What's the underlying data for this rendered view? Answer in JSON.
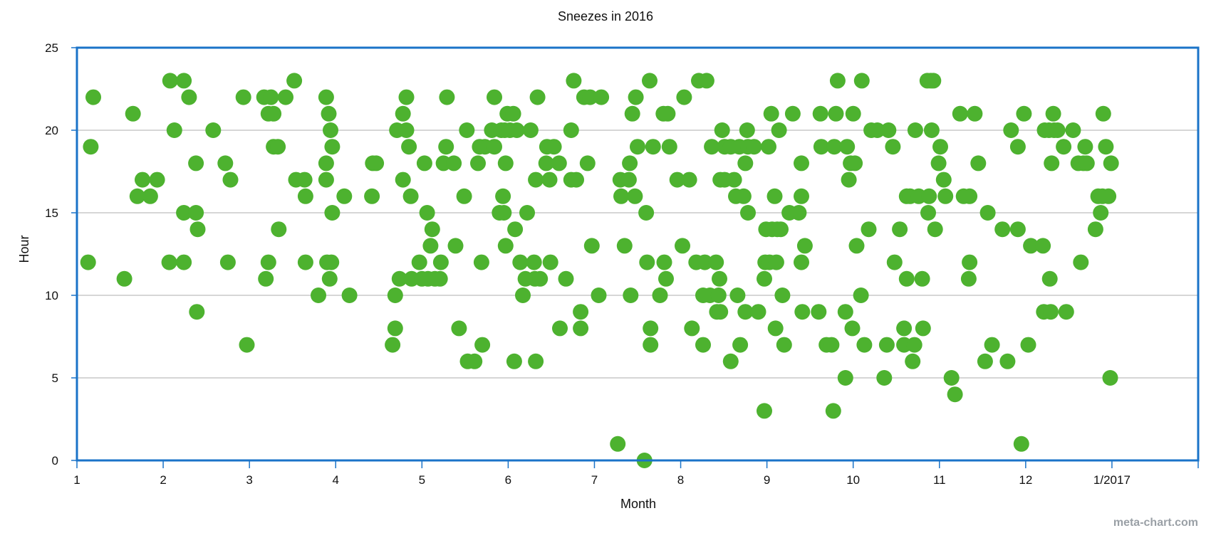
{
  "chart_data": {
    "type": "scatter",
    "title": "Sneezes in 2016",
    "xlabel": "Month",
    "ylabel": "Hour",
    "xlim": [
      1,
      14
    ],
    "ylim": [
      0,
      25
    ],
    "x_ticks": [
      {
        "value": 1,
        "label": "1"
      },
      {
        "value": 2,
        "label": "2"
      },
      {
        "value": 3,
        "label": "3"
      },
      {
        "value": 4,
        "label": "4"
      },
      {
        "value": 5,
        "label": "5"
      },
      {
        "value": 6,
        "label": "6"
      },
      {
        "value": 7,
        "label": "7"
      },
      {
        "value": 8,
        "label": "8"
      },
      {
        "value": 9,
        "label": "9"
      },
      {
        "value": 10,
        "label": "10"
      },
      {
        "value": 11,
        "label": "11"
      },
      {
        "value": 12,
        "label": "12"
      },
      {
        "value": 13,
        "label": "1/2017"
      }
    ],
    "y_ticks": [
      0,
      5,
      10,
      15,
      20,
      25
    ],
    "grid": true,
    "colors": {
      "point": "#4db22f",
      "frame": "#1a73c8",
      "grid": "#c8c8c8"
    },
    "points": [
      [
        1.13,
        12
      ],
      [
        1.16,
        19
      ],
      [
        1.19,
        22
      ],
      [
        1.55,
        11
      ],
      [
        1.65,
        21
      ],
      [
        1.7,
        16
      ],
      [
        1.76,
        17
      ],
      [
        1.85,
        16
      ],
      [
        1.93,
        17
      ],
      [
        2.07,
        12
      ],
      [
        2.08,
        23
      ],
      [
        2.13,
        20
      ],
      [
        2.24,
        23
      ],
      [
        2.24,
        15
      ],
      [
        2.24,
        12
      ],
      [
        2.3,
        22
      ],
      [
        2.38,
        18
      ],
      [
        2.38,
        15
      ],
      [
        2.39,
        9
      ],
      [
        2.4,
        14
      ],
      [
        2.58,
        20
      ],
      [
        2.72,
        18
      ],
      [
        2.75,
        12
      ],
      [
        2.78,
        17
      ],
      [
        2.93,
        22
      ],
      [
        2.97,
        7
      ],
      [
        3.17,
        22
      ],
      [
        3.19,
        11
      ],
      [
        3.22,
        12
      ],
      [
        3.22,
        21
      ],
      [
        3.25,
        22
      ],
      [
        3.28,
        19
      ],
      [
        3.28,
        21
      ],
      [
        3.33,
        19
      ],
      [
        3.34,
        14
      ],
      [
        3.42,
        22
      ],
      [
        3.52,
        23
      ],
      [
        3.54,
        17
      ],
      [
        3.64,
        17
      ],
      [
        3.65,
        16
      ],
      [
        3.65,
        12
      ],
      [
        3.8,
        10
      ],
      [
        3.89,
        22
      ],
      [
        3.89,
        18
      ],
      [
        3.89,
        17
      ],
      [
        3.9,
        12
      ],
      [
        3.92,
        21
      ],
      [
        3.93,
        11
      ],
      [
        3.94,
        20
      ],
      [
        3.95,
        12
      ],
      [
        3.96,
        19
      ],
      [
        3.96,
        15
      ],
      [
        4.1,
        16
      ],
      [
        4.16,
        10
      ],
      [
        4.42,
        16
      ],
      [
        4.43,
        18
      ],
      [
        4.47,
        18
      ],
      [
        4.66,
        7
      ],
      [
        4.69,
        10
      ],
      [
        4.69,
        8
      ],
      [
        4.71,
        20
      ],
      [
        4.74,
        11
      ],
      [
        4.78,
        21
      ],
      [
        4.78,
        17
      ],
      [
        4.82,
        22
      ],
      [
        4.82,
        20
      ],
      [
        4.85,
        19
      ],
      [
        4.87,
        16
      ],
      [
        4.88,
        11
      ],
      [
        4.97,
        12
      ],
      [
        5.0,
        11
      ],
      [
        5.03,
        18
      ],
      [
        5.06,
        15
      ],
      [
        5.07,
        11
      ],
      [
        5.1,
        13
      ],
      [
        5.12,
        14
      ],
      [
        5.15,
        11
      ],
      [
        5.21,
        11
      ],
      [
        5.22,
        12
      ],
      [
        5.25,
        18
      ],
      [
        5.28,
        19
      ],
      [
        5.29,
        22
      ],
      [
        5.37,
        18
      ],
      [
        5.39,
        13
      ],
      [
        5.43,
        8
      ],
      [
        5.49,
        16
      ],
      [
        5.52,
        20
      ],
      [
        5.53,
        6
      ],
      [
        5.61,
        6
      ],
      [
        5.65,
        18
      ],
      [
        5.67,
        19
      ],
      [
        5.69,
        12
      ],
      [
        5.7,
        7
      ],
      [
        5.73,
        19
      ],
      [
        5.81,
        20
      ],
      [
        5.84,
        19
      ],
      [
        5.84,
        22
      ],
      [
        5.9,
        15
      ],
      [
        5.92,
        20
      ],
      [
        5.94,
        16
      ],
      [
        5.95,
        15
      ],
      [
        5.96,
        20
      ],
      [
        5.97,
        13
      ],
      [
        5.97,
        18
      ],
      [
        5.99,
        21
      ],
      [
        6.02,
        20
      ],
      [
        6.06,
        21
      ],
      [
        6.07,
        6
      ],
      [
        6.08,
        14
      ],
      [
        6.1,
        20
      ],
      [
        6.14,
        12
      ],
      [
        6.17,
        10
      ],
      [
        6.2,
        11
      ],
      [
        6.22,
        15
      ],
      [
        6.26,
        20
      ],
      [
        6.3,
        12
      ],
      [
        6.31,
        11
      ],
      [
        6.32,
        17
      ],
      [
        6.32,
        6
      ],
      [
        6.34,
        22
      ],
      [
        6.37,
        11
      ],
      [
        6.44,
        18
      ],
      [
        6.45,
        19
      ],
      [
        6.48,
        17
      ],
      [
        6.49,
        12
      ],
      [
        6.53,
        19
      ],
      [
        6.59,
        18
      ],
      [
        6.6,
        8
      ],
      [
        6.67,
        11
      ],
      [
        6.73,
        17
      ],
      [
        6.73,
        20
      ],
      [
        6.76,
        23
      ],
      [
        6.79,
        17
      ],
      [
        6.84,
        9
      ],
      [
        6.84,
        8
      ],
      [
        6.88,
        22
      ],
      [
        6.92,
        18
      ],
      [
        6.95,
        22
      ],
      [
        6.97,
        13
      ],
      [
        7.05,
        10
      ],
      [
        7.08,
        22
      ],
      [
        7.27,
        1
      ],
      [
        7.3,
        17
      ],
      [
        7.31,
        16
      ],
      [
        7.35,
        13
      ],
      [
        7.4,
        17
      ],
      [
        7.41,
        18
      ],
      [
        7.42,
        10
      ],
      [
        7.44,
        21
      ],
      [
        7.47,
        16
      ],
      [
        7.48,
        22
      ],
      [
        7.5,
        19
      ],
      [
        7.58,
        0
      ],
      [
        7.6,
        15
      ],
      [
        7.61,
        12
      ],
      [
        7.64,
        23
      ],
      [
        7.65,
        8
      ],
      [
        7.65,
        7
      ],
      [
        7.68,
        19
      ],
      [
        7.76,
        10
      ],
      [
        7.8,
        21
      ],
      [
        7.81,
        12
      ],
      [
        7.83,
        11
      ],
      [
        7.85,
        21
      ],
      [
        7.87,
        19
      ],
      [
        7.96,
        17
      ],
      [
        8.02,
        13
      ],
      [
        8.04,
        22
      ],
      [
        8.1,
        17
      ],
      [
        8.13,
        8
      ],
      [
        8.18,
        12
      ],
      [
        8.21,
        23
      ],
      [
        8.26,
        7
      ],
      [
        8.26,
        10
      ],
      [
        8.28,
        12
      ],
      [
        8.3,
        23
      ],
      [
        8.34,
        10
      ],
      [
        8.36,
        19
      ],
      [
        8.41,
        12
      ],
      [
        8.42,
        9
      ],
      [
        8.44,
        10
      ],
      [
        8.45,
        11
      ],
      [
        8.46,
        9
      ],
      [
        8.46,
        17
      ],
      [
        8.48,
        20
      ],
      [
        8.51,
        19
      ],
      [
        8.51,
        17
      ],
      [
        8.58,
        19
      ],
      [
        8.58,
        6
      ],
      [
        8.62,
        17
      ],
      [
        8.64,
        16
      ],
      [
        8.66,
        10
      ],
      [
        8.68,
        19
      ],
      [
        8.69,
        7
      ],
      [
        8.73,
        16
      ],
      [
        8.75,
        9
      ],
      [
        8.75,
        18
      ],
      [
        8.77,
        20
      ],
      [
        8.78,
        15
      ],
      [
        8.78,
        19
      ],
      [
        8.85,
        19
      ],
      [
        8.9,
        9
      ],
      [
        8.97,
        3
      ],
      [
        8.97,
        11
      ],
      [
        8.98,
        12
      ],
      [
        8.99,
        14
      ],
      [
        9.02,
        19
      ],
      [
        9.03,
        12
      ],
      [
        9.05,
        21
      ],
      [
        9.06,
        14
      ],
      [
        9.09,
        16
      ],
      [
        9.1,
        8
      ],
      [
        9.11,
        12
      ],
      [
        9.12,
        14
      ],
      [
        9.14,
        20
      ],
      [
        9.16,
        14
      ],
      [
        9.18,
        10
      ],
      [
        9.2,
        7
      ],
      [
        9.26,
        15
      ],
      [
        9.3,
        21
      ],
      [
        9.37,
        15
      ],
      [
        9.4,
        12
      ],
      [
        9.4,
        16
      ],
      [
        9.4,
        18
      ],
      [
        9.41,
        9
      ],
      [
        9.44,
        13
      ],
      [
        9.6,
        9
      ],
      [
        9.62,
        21
      ],
      [
        9.63,
        19
      ],
      [
        9.69,
        7
      ],
      [
        9.75,
        7
      ],
      [
        9.77,
        3
      ],
      [
        9.78,
        19
      ],
      [
        9.8,
        21
      ],
      [
        9.82,
        23
      ],
      [
        9.91,
        9
      ],
      [
        9.91,
        5
      ],
      [
        9.93,
        19
      ],
      [
        9.95,
        17
      ],
      [
        9.97,
        18
      ],
      [
        9.99,
        8
      ],
      [
        10.0,
        21
      ],
      [
        10.02,
        18
      ],
      [
        10.04,
        13
      ],
      [
        10.09,
        10
      ],
      [
        10.1,
        23
      ],
      [
        10.13,
        7
      ],
      [
        10.18,
        14
      ],
      [
        10.21,
        20
      ],
      [
        10.28,
        20
      ],
      [
        10.36,
        5
      ],
      [
        10.39,
        7
      ],
      [
        10.41,
        20
      ],
      [
        10.46,
        19
      ],
      [
        10.48,
        12
      ],
      [
        10.54,
        14
      ],
      [
        10.59,
        7
      ],
      [
        10.59,
        8
      ],
      [
        10.62,
        16
      ],
      [
        10.62,
        11
      ],
      [
        10.66,
        16
      ],
      [
        10.69,
        6
      ],
      [
        10.71,
        7
      ],
      [
        10.72,
        20
      ],
      [
        10.76,
        16
      ],
      [
        10.8,
        11
      ],
      [
        10.81,
        8
      ],
      [
        10.86,
        23
      ],
      [
        10.87,
        15
      ],
      [
        10.88,
        16
      ],
      [
        10.9,
        23
      ],
      [
        10.91,
        20
      ],
      [
        10.93,
        23
      ],
      [
        10.95,
        14
      ],
      [
        10.99,
        18
      ],
      [
        11.01,
        19
      ],
      [
        11.05,
        17
      ],
      [
        11.07,
        16
      ],
      [
        11.14,
        5
      ],
      [
        11.18,
        4
      ],
      [
        11.24,
        21
      ],
      [
        11.28,
        16
      ],
      [
        11.34,
        11
      ],
      [
        11.35,
        16
      ],
      [
        11.35,
        12
      ],
      [
        11.41,
        21
      ],
      [
        11.45,
        18
      ],
      [
        11.53,
        6
      ],
      [
        11.56,
        15
      ],
      [
        11.61,
        7
      ],
      [
        11.73,
        14
      ],
      [
        11.79,
        6
      ],
      [
        11.83,
        20
      ],
      [
        11.91,
        14
      ],
      [
        11.91,
        19
      ],
      [
        11.95,
        1
      ],
      [
        11.98,
        21
      ],
      [
        12.03,
        7
      ],
      [
        12.06,
        13
      ],
      [
        12.2,
        13
      ],
      [
        12.21,
        9
      ],
      [
        12.22,
        20
      ],
      [
        12.27,
        20
      ],
      [
        12.28,
        11
      ],
      [
        12.29,
        9
      ],
      [
        12.3,
        18
      ],
      [
        12.32,
        21
      ],
      [
        12.33,
        20
      ],
      [
        12.37,
        20
      ],
      [
        12.44,
        19
      ],
      [
        12.47,
        9
      ],
      [
        12.55,
        20
      ],
      [
        12.61,
        18
      ],
      [
        12.64,
        12
      ],
      [
        12.67,
        18
      ],
      [
        12.69,
        19
      ],
      [
        12.71,
        18
      ],
      [
        12.81,
        14
      ],
      [
        12.84,
        16
      ],
      [
        12.87,
        15
      ],
      [
        12.89,
        16
      ],
      [
        12.9,
        21
      ],
      [
        12.93,
        19
      ],
      [
        12.96,
        16
      ],
      [
        12.98,
        5
      ],
      [
        12.99,
        18
      ]
    ]
  },
  "watermark": "meta-chart.com"
}
